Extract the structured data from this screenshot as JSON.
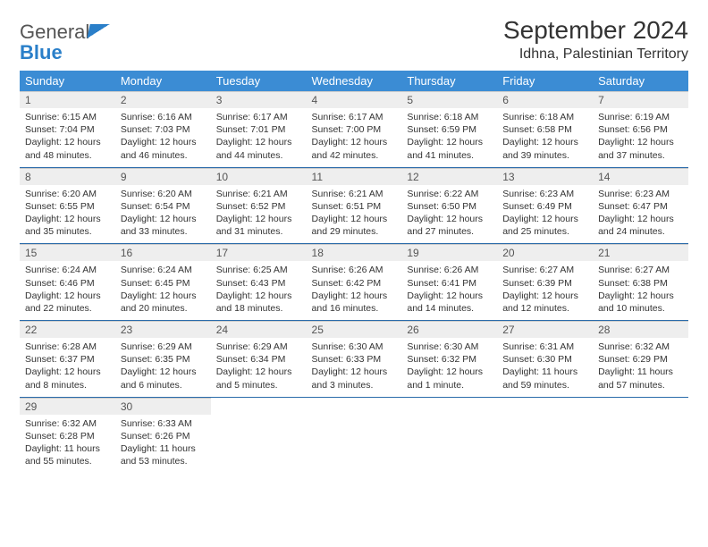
{
  "logo": {
    "text1": "General",
    "text2": "Blue"
  },
  "title": "September 2024",
  "location": "Idhna, Palestinian Territory",
  "header_bg": "#3b8cd4",
  "weekdays": [
    "Sunday",
    "Monday",
    "Tuesday",
    "Wednesday",
    "Thursday",
    "Friday",
    "Saturday"
  ],
  "cell_style": {
    "daynum_bg": "#eeeeee",
    "daynum_color": "#555555",
    "content_fontsize": 10.5,
    "border_color": "#2a6baa"
  },
  "weeks": [
    [
      {
        "n": "1",
        "sr": "6:15 AM",
        "ss": "7:04 PM",
        "dl": "12 hours and 48 minutes."
      },
      {
        "n": "2",
        "sr": "6:16 AM",
        "ss": "7:03 PM",
        "dl": "12 hours and 46 minutes."
      },
      {
        "n": "3",
        "sr": "6:17 AM",
        "ss": "7:01 PM",
        "dl": "12 hours and 44 minutes."
      },
      {
        "n": "4",
        "sr": "6:17 AM",
        "ss": "7:00 PM",
        "dl": "12 hours and 42 minutes."
      },
      {
        "n": "5",
        "sr": "6:18 AM",
        "ss": "6:59 PM",
        "dl": "12 hours and 41 minutes."
      },
      {
        "n": "6",
        "sr": "6:18 AM",
        "ss": "6:58 PM",
        "dl": "12 hours and 39 minutes."
      },
      {
        "n": "7",
        "sr": "6:19 AM",
        "ss": "6:56 PM",
        "dl": "12 hours and 37 minutes."
      }
    ],
    [
      {
        "n": "8",
        "sr": "6:20 AM",
        "ss": "6:55 PM",
        "dl": "12 hours and 35 minutes."
      },
      {
        "n": "9",
        "sr": "6:20 AM",
        "ss": "6:54 PM",
        "dl": "12 hours and 33 minutes."
      },
      {
        "n": "10",
        "sr": "6:21 AM",
        "ss": "6:52 PM",
        "dl": "12 hours and 31 minutes."
      },
      {
        "n": "11",
        "sr": "6:21 AM",
        "ss": "6:51 PM",
        "dl": "12 hours and 29 minutes."
      },
      {
        "n": "12",
        "sr": "6:22 AM",
        "ss": "6:50 PM",
        "dl": "12 hours and 27 minutes."
      },
      {
        "n": "13",
        "sr": "6:23 AM",
        "ss": "6:49 PM",
        "dl": "12 hours and 25 minutes."
      },
      {
        "n": "14",
        "sr": "6:23 AM",
        "ss": "6:47 PM",
        "dl": "12 hours and 24 minutes."
      }
    ],
    [
      {
        "n": "15",
        "sr": "6:24 AM",
        "ss": "6:46 PM",
        "dl": "12 hours and 22 minutes."
      },
      {
        "n": "16",
        "sr": "6:24 AM",
        "ss": "6:45 PM",
        "dl": "12 hours and 20 minutes."
      },
      {
        "n": "17",
        "sr": "6:25 AM",
        "ss": "6:43 PM",
        "dl": "12 hours and 18 minutes."
      },
      {
        "n": "18",
        "sr": "6:26 AM",
        "ss": "6:42 PM",
        "dl": "12 hours and 16 minutes."
      },
      {
        "n": "19",
        "sr": "6:26 AM",
        "ss": "6:41 PM",
        "dl": "12 hours and 14 minutes."
      },
      {
        "n": "20",
        "sr": "6:27 AM",
        "ss": "6:39 PM",
        "dl": "12 hours and 12 minutes."
      },
      {
        "n": "21",
        "sr": "6:27 AM",
        "ss": "6:38 PM",
        "dl": "12 hours and 10 minutes."
      }
    ],
    [
      {
        "n": "22",
        "sr": "6:28 AM",
        "ss": "6:37 PM",
        "dl": "12 hours and 8 minutes."
      },
      {
        "n": "23",
        "sr": "6:29 AM",
        "ss": "6:35 PM",
        "dl": "12 hours and 6 minutes."
      },
      {
        "n": "24",
        "sr": "6:29 AM",
        "ss": "6:34 PM",
        "dl": "12 hours and 5 minutes."
      },
      {
        "n": "25",
        "sr": "6:30 AM",
        "ss": "6:33 PM",
        "dl": "12 hours and 3 minutes."
      },
      {
        "n": "26",
        "sr": "6:30 AM",
        "ss": "6:32 PM",
        "dl": "12 hours and 1 minute."
      },
      {
        "n": "27",
        "sr": "6:31 AM",
        "ss": "6:30 PM",
        "dl": "11 hours and 59 minutes."
      },
      {
        "n": "28",
        "sr": "6:32 AM",
        "ss": "6:29 PM",
        "dl": "11 hours and 57 minutes."
      }
    ],
    [
      {
        "n": "29",
        "sr": "6:32 AM",
        "ss": "6:28 PM",
        "dl": "11 hours and 55 minutes."
      },
      {
        "n": "30",
        "sr": "6:33 AM",
        "ss": "6:26 PM",
        "dl": "11 hours and 53 minutes."
      },
      null,
      null,
      null,
      null,
      null
    ]
  ],
  "labels": {
    "sunrise": "Sunrise:",
    "sunset": "Sunset:",
    "daylight": "Daylight:"
  }
}
